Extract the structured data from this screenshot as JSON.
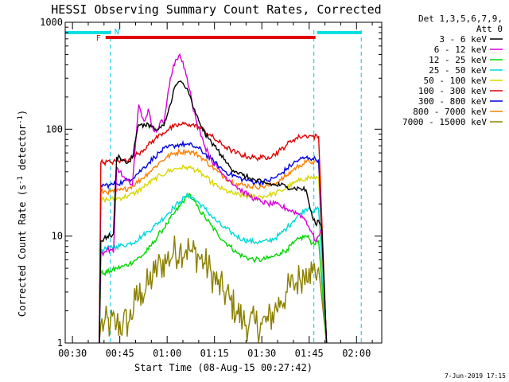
{
  "chart_data": {
    "type": "line",
    "title": "HESSI Observing Summary Count Rates, Corrected",
    "xlabel": "Start Time (08-Aug-15 00:27:42)",
    "ylabel": "Corrected Count Rate (s",
    "ylabel_sup1": "-1",
    "ylabel_mid": " detector",
    "ylabel_sup2": "-1",
    "ylabel_end": ")",
    "yscale": "log",
    "xlim_minutes": [
      27.7,
      128
    ],
    "ylim": [
      1,
      1000
    ],
    "x_ticks": [
      {
        "label": "00:30",
        "t": 30
      },
      {
        "label": "00:45",
        "t": 45
      },
      {
        "label": "01:00",
        "t": 60
      },
      {
        "label": "01:15",
        "t": 75
      },
      {
        "label": "01:30",
        "t": 90
      },
      {
        "label": "01:45",
        "t": 105
      },
      {
        "label": "02:00",
        "t": 120
      }
    ],
    "y_ticks": [
      {
        "label": "1",
        "v": 1
      },
      {
        "label": "10",
        "v": 10
      },
      {
        "label": "100",
        "v": 100
      },
      {
        "label": "1000",
        "v": 1000
      }
    ],
    "legend_header": [
      "Det 1,3,5,6,7,9,",
      "Att 0"
    ],
    "footer_date": "7-Jun-2019 17:15",
    "flags": {
      "flare_label": "F",
      "night_label": "N",
      "flare_interval": [
        40.5,
        107
      ],
      "day_intervals": [
        [
          27.7,
          42
        ],
        [
          107.5,
          121.5
        ]
      ],
      "night_marks": [
        42,
        106.5,
        121.5
      ]
    },
    "series": [
      {
        "name": "3 - 6 keV",
        "color": "#000000",
        "x": [
          38.5,
          39,
          40,
          41,
          42,
          43,
          44,
          45,
          46,
          47,
          48,
          49,
          50,
          51,
          52,
          53,
          54,
          55,
          56,
          57,
          58,
          59,
          60,
          61,
          62,
          63,
          64,
          65,
          66,
          67,
          68,
          69,
          70,
          71,
          72,
          73,
          74,
          75,
          76,
          77,
          78,
          79,
          80,
          82,
          84,
          86,
          88,
          90,
          92,
          94,
          96,
          98,
          100,
          102,
          104,
          105,
          106,
          107,
          108,
          109,
          110.5
        ],
        "y": [
          1,
          9,
          9.5,
          10,
          10,
          10.5,
          55,
          55,
          52,
          48,
          50,
          54,
          80,
          110,
          112,
          108,
          112,
          105,
          100,
          98,
          103,
          108,
          135,
          170,
          230,
          260,
          280,
          270,
          240,
          210,
          170,
          140,
          120,
          105,
          90,
          82,
          76,
          70,
          64,
          58,
          52,
          48,
          44,
          40,
          37,
          35,
          33,
          32,
          31,
          30,
          30,
          29,
          28,
          28,
          27,
          20,
          15,
          13,
          14,
          12,
          1
        ]
      },
      {
        "name": "6 - 12 keV",
        "color": "#d800d8",
        "x": [
          38.5,
          39,
          40,
          41,
          42,
          43,
          44,
          45,
          46,
          47,
          48,
          49,
          50,
          51,
          52,
          53,
          54,
          55,
          56,
          57,
          58,
          59,
          60,
          61,
          62,
          63,
          64,
          65,
          66,
          67,
          68,
          69,
          70,
          71,
          72,
          73,
          74,
          75,
          76,
          77,
          78,
          80,
          82,
          84,
          86,
          88,
          90,
          92,
          94,
          96,
          98,
          100,
          102,
          104,
          105,
          106,
          107,
          108,
          109,
          110.5
        ],
        "y": [
          1,
          7,
          7,
          7.5,
          7.5,
          7,
          44,
          40,
          36,
          33,
          32,
          30,
          75,
          170,
          130,
          120,
          155,
          110,
          95,
          100,
          120,
          110,
          190,
          300,
          400,
          450,
          500,
          430,
          320,
          240,
          170,
          130,
          105,
          85,
          68,
          60,
          52,
          47,
          43,
          40,
          37,
          33,
          29,
          26,
          24,
          22,
          21,
          20,
          20,
          19,
          18,
          17,
          16,
          14,
          12,
          10.5,
          9,
          10,
          11,
          1
        ]
      },
      {
        "name": "12 - 25 keV",
        "color": "#00d800",
        "x": [
          38.5,
          39,
          40,
          42,
          44,
          46,
          48,
          50,
          52,
          54,
          56,
          58,
          60,
          62,
          64,
          66,
          67,
          68,
          70,
          72,
          74,
          76,
          78,
          80,
          82,
          84,
          86,
          88,
          90,
          92,
          94,
          96,
          98,
          100,
          102,
          104,
          105,
          106,
          108,
          110.5
        ],
        "y": [
          1,
          4.5,
          4.5,
          4.7,
          5,
          5.2,
          5.5,
          6,
          6.5,
          7.5,
          9,
          11,
          13,
          16,
          19,
          23,
          25,
          22,
          18,
          15,
          12.5,
          10.5,
          9,
          8,
          7,
          6.5,
          6.2,
          6,
          6,
          6.2,
          6.5,
          7,
          7.5,
          8.5,
          9.5,
          10,
          9.5,
          8.5,
          9,
          1
        ]
      },
      {
        "name": "25 - 50 keV",
        "color": "#00d8d8",
        "x": [
          38.5,
          39,
          40,
          42,
          44,
          46,
          48,
          50,
          52,
          54,
          56,
          58,
          60,
          62,
          64,
          66,
          67,
          68,
          70,
          72,
          74,
          76,
          78,
          80,
          82,
          84,
          86,
          88,
          90,
          92,
          94,
          96,
          98,
          100,
          102,
          104,
          105,
          106,
          108,
          110.5
        ],
        "y": [
          1,
          7.5,
          7.5,
          7.8,
          8,
          8.2,
          8.5,
          9,
          10,
          11,
          12.5,
          14,
          16,
          18.5,
          21,
          23.5,
          24,
          23,
          20.5,
          18,
          15.5,
          13.5,
          12,
          11,
          10,
          9.3,
          9,
          8.8,
          8.8,
          9,
          9.5,
          10.5,
          12,
          14,
          16,
          18,
          18.5,
          17,
          18,
          1
        ]
      },
      {
        "name": "50 - 100 keV",
        "color": "#d8d800",
        "x": [
          38.5,
          39,
          40,
          42,
          44,
          46,
          48,
          50,
          52,
          54,
          56,
          58,
          60,
          62,
          64,
          66,
          67,
          68,
          70,
          72,
          74,
          76,
          78,
          80,
          82,
          84,
          86,
          88,
          90,
          92,
          94,
          96,
          98,
          100,
          102,
          104,
          105,
          106,
          108,
          110.5
        ],
        "y": [
          1,
          22,
          22,
          22,
          22.5,
          23,
          24,
          25.5,
          28,
          31,
          34,
          37,
          40,
          42,
          43.5,
          44,
          43.5,
          43,
          40,
          36,
          32,
          29,
          27,
          25.5,
          24.5,
          24,
          23.5,
          23.5,
          23.5,
          24,
          25,
          26.5,
          28.5,
          31,
          33,
          35,
          35.5,
          35,
          35,
          1
        ]
      },
      {
        "name": "100 - 300 keV",
        "color": "#e00000",
        "x": [
          38.5,
          39,
          40,
          42,
          44,
          46,
          48,
          50,
          52,
          54,
          56,
          58,
          60,
          62,
          64,
          66,
          67,
          68,
          70,
          72,
          74,
          76,
          78,
          80,
          82,
          84,
          86,
          88,
          90,
          92,
          94,
          96,
          98,
          100,
          102,
          104,
          105,
          106,
          108,
          110.5
        ],
        "y": [
          1,
          49,
          49,
          49,
          50,
          51,
          53,
          57,
          63,
          71,
          80,
          90,
          98,
          105,
          110,
          112,
          111,
          110,
          105,
          96,
          86,
          77,
          70,
          64,
          60,
          57,
          55,
          54,
          54,
          55,
          58,
          64,
          72,
          80,
          85,
          87,
          87,
          86,
          85,
          1
        ]
      },
      {
        "name": "300 - 800 keV",
        "color": "#0000e0",
        "x": [
          38.5,
          39,
          40,
          42,
          44,
          46,
          48,
          50,
          52,
          54,
          56,
          58,
          60,
          62,
          64,
          66,
          67,
          68,
          70,
          72,
          74,
          76,
          78,
          80,
          82,
          84,
          86,
          88,
          90,
          92,
          94,
          96,
          98,
          100,
          102,
          104,
          105,
          106,
          108,
          110.5
        ],
        "y": [
          1,
          30,
          30,
          30,
          31,
          32,
          34,
          37,
          42,
          48,
          55,
          62,
          67,
          70,
          72,
          72,
          71,
          70,
          66,
          59,
          52,
          46,
          41,
          38,
          36,
          34,
          33,
          32,
          32,
          33,
          35,
          38,
          43,
          48,
          52,
          54,
          54,
          53,
          52,
          1
        ]
      },
      {
        "name": "800 - 7000 keV",
        "color": "#ff8000",
        "x": [
          38.5,
          39,
          40,
          42,
          44,
          46,
          48,
          50,
          52,
          54,
          56,
          58,
          60,
          62,
          64,
          66,
          67,
          68,
          70,
          72,
          74,
          76,
          78,
          80,
          82,
          84,
          86,
          88,
          90,
          92,
          94,
          96,
          98,
          100,
          102,
          104,
          105,
          106,
          108,
          110.5
        ],
        "y": [
          1,
          26,
          26,
          26,
          26.5,
          27,
          28.5,
          31,
          34.5,
          39,
          44,
          50,
          55,
          59,
          61.5,
          62,
          61.5,
          61,
          57,
          51,
          45,
          40,
          36,
          33,
          31,
          30,
          29.5,
          29,
          29,
          29.5,
          31,
          33.5,
          37,
          42,
          46,
          49,
          50,
          49,
          48,
          1
        ]
      },
      {
        "name": "7000 - 15000 keV",
        "color": "#8b8000",
        "x": [
          38.5,
          39,
          40,
          42,
          44,
          46,
          48,
          50,
          52,
          54,
          56,
          58,
          60,
          62,
          64,
          66,
          67,
          68,
          70,
          72,
          74,
          76,
          78,
          80,
          82,
          84,
          86,
          88,
          90,
          92,
          94,
          96,
          98,
          100,
          102,
          104,
          105,
          106,
          108,
          110.5
        ],
        "y": [
          1,
          1.5,
          1.5,
          1.5,
          1.5,
          1.5,
          1.6,
          2.5,
          3,
          3.5,
          4.5,
          5.5,
          6,
          7,
          7.5,
          7.5,
          7.5,
          7,
          6.5,
          5.5,
          4.5,
          3.5,
          3,
          2.5,
          2,
          1.6,
          1.5,
          1.5,
          1.5,
          1.6,
          2,
          2.5,
          3,
          3.5,
          4,
          5,
          5,
          4.5,
          5,
          1
        ]
      }
    ]
  }
}
